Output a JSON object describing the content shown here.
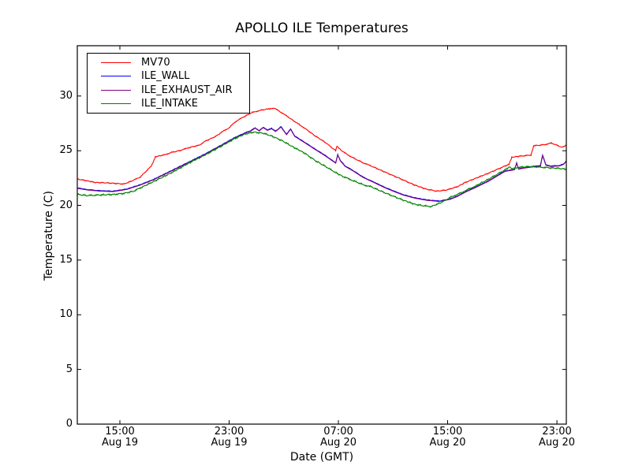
{
  "chart_data": {
    "type": "line",
    "title": "APOLLO ILE Temperatures",
    "xlabel": "Date (GMT)",
    "ylabel": "Temperature (C)",
    "background": "#ffffff",
    "frame_color": "#000000",
    "grid": false,
    "legend_position": "upper left",
    "x_unit": "hours since Aug 19 00:00 GMT",
    "xlim": [
      11.88,
      47.69
    ],
    "ylim": [
      0,
      34.6
    ],
    "y_ticks": [
      "0",
      "5",
      "10",
      "15",
      "20",
      "25",
      "30"
    ],
    "y_tick_values": [
      0,
      5,
      10,
      15,
      20,
      25,
      30
    ],
    "x_ticks": [
      {
        "value": 15,
        "time": "15:00",
        "date": "Aug 19"
      },
      {
        "value": 23,
        "time": "23:00",
        "date": "Aug 19"
      },
      {
        "value": 31,
        "time": "07:00",
        "date": "Aug 20"
      },
      {
        "value": 39,
        "time": "15:00",
        "date": "Aug 20"
      },
      {
        "value": 47,
        "time": "23:00",
        "date": "Aug 20"
      }
    ],
    "series": [
      {
        "name": "MV70",
        "color": "#ff0000",
        "noise_amp": 0.055,
        "points": [
          [
            11.9,
            22.4
          ],
          [
            12.6,
            22.25
          ],
          [
            13.2,
            22.1
          ],
          [
            14.2,
            22.05
          ],
          [
            15.3,
            21.95
          ],
          [
            16,
            22.3
          ],
          [
            16.5,
            22.6
          ],
          [
            17.3,
            23.6
          ],
          [
            17.45,
            24
          ],
          [
            17.6,
            24.45
          ],
          [
            18.2,
            24.6
          ],
          [
            18.8,
            24.85
          ],
          [
            19.5,
            25.05
          ],
          [
            20.1,
            25.3
          ],
          [
            20.8,
            25.5
          ],
          [
            21.3,
            25.9
          ],
          [
            22,
            26.3
          ],
          [
            22.4,
            26.65
          ],
          [
            23,
            27.1
          ],
          [
            23.4,
            27.6
          ],
          [
            24,
            28.05
          ],
          [
            24.7,
            28.5
          ],
          [
            25.3,
            28.7
          ],
          [
            26,
            28.85
          ],
          [
            26.3,
            28.9
          ],
          [
            26.7,
            28.6
          ],
          [
            27.3,
            28.1
          ],
          [
            28,
            27.5
          ],
          [
            28.6,
            27
          ],
          [
            29.3,
            26.35
          ],
          [
            30,
            25.8
          ],
          [
            30.8,
            25
          ],
          [
            30.9,
            25.4
          ],
          [
            31.1,
            25.15
          ],
          [
            31.4,
            24.85
          ],
          [
            32,
            24.4
          ],
          [
            32.8,
            23.9
          ],
          [
            33.4,
            23.6
          ],
          [
            34.5,
            23
          ],
          [
            35.7,
            22.35
          ],
          [
            36.5,
            21.9
          ],
          [
            37.4,
            21.5
          ],
          [
            38.2,
            21.3
          ],
          [
            38.9,
            21.4
          ],
          [
            39.7,
            21.7
          ],
          [
            40.3,
            22.1
          ],
          [
            41,
            22.45
          ],
          [
            42,
            22.95
          ],
          [
            43.2,
            23.6
          ],
          [
            43.5,
            23.75
          ],
          [
            43.7,
            24.4
          ],
          [
            44.3,
            24.5
          ],
          [
            45.1,
            24.6
          ],
          [
            45.3,
            25.45
          ],
          [
            46.1,
            25.55
          ],
          [
            46.6,
            25.7
          ],
          [
            47,
            25.5
          ],
          [
            47.4,
            25.3
          ],
          [
            47.7,
            25.5
          ]
        ]
      },
      {
        "name": "ILE_WALL",
        "color": "#0000ff",
        "noise_amp": 0.03,
        "points": [
          [
            11.9,
            21.6
          ],
          [
            12.6,
            21.45
          ],
          [
            13.5,
            21.35
          ],
          [
            14.5,
            21.3
          ],
          [
            15.5,
            21.5
          ],
          [
            16.5,
            21.9
          ],
          [
            17.5,
            22.4
          ],
          [
            18.8,
            23.2
          ],
          [
            20.1,
            24
          ],
          [
            21.3,
            24.75
          ],
          [
            22.4,
            25.5
          ],
          [
            23.4,
            26.2
          ],
          [
            24.1,
            26.6
          ],
          [
            24.6,
            26.85
          ],
          [
            24.9,
            27.1
          ],
          [
            25.2,
            26.85
          ],
          [
            25.5,
            27.15
          ],
          [
            25.8,
            26.9
          ],
          [
            26.1,
            27.05
          ],
          [
            26.4,
            26.8
          ],
          [
            26.8,
            27.2
          ],
          [
            27.2,
            26.5
          ],
          [
            27.5,
            27
          ],
          [
            27.8,
            26.35
          ],
          [
            28.5,
            25.8
          ],
          [
            29.3,
            25.15
          ],
          [
            30,
            24.6
          ],
          [
            30.8,
            23.9
          ],
          [
            30.95,
            24.65
          ],
          [
            31.15,
            24.1
          ],
          [
            31.5,
            23.6
          ],
          [
            32,
            23.25
          ],
          [
            32.8,
            22.6
          ],
          [
            33.4,
            22.25
          ],
          [
            34.5,
            21.6
          ],
          [
            35.7,
            21
          ],
          [
            36.6,
            20.7
          ],
          [
            37.5,
            20.5
          ],
          [
            38.4,
            20.4
          ],
          [
            39.2,
            20.6
          ],
          [
            39.7,
            20.85
          ],
          [
            40.3,
            21.25
          ],
          [
            41,
            21.65
          ],
          [
            42,
            22.25
          ],
          [
            43.2,
            23.15
          ],
          [
            43.9,
            23.3
          ],
          [
            44.05,
            23.9
          ],
          [
            44.2,
            23.35
          ],
          [
            44.6,
            23.45
          ],
          [
            45.2,
            23.55
          ],
          [
            45.8,
            23.65
          ],
          [
            45.95,
            24.6
          ],
          [
            46.2,
            23.7
          ],
          [
            46.6,
            23.6
          ],
          [
            47.2,
            23.65
          ],
          [
            47.5,
            23.8
          ],
          [
            47.7,
            24.1
          ]
        ]
      },
      {
        "name": "ILE_EXHAUST_AIR",
        "color": "#800080",
        "noise_amp": 0.0,
        "points_same_as": "ILE_WALL",
        "offset": -0.04,
        "note": "visually overlapped by ILE_WALL line in the screenshot",
        "draw_under": "ILE_WALL"
      },
      {
        "name": "ILE_INTAKE",
        "color": "#008000",
        "noise_amp": 0.08,
        "points": [
          [
            11.9,
            21
          ],
          [
            12.6,
            20.9
          ],
          [
            13.5,
            20.95
          ],
          [
            14.5,
            21
          ],
          [
            15.3,
            21.1
          ],
          [
            16,
            21.3
          ],
          [
            16.5,
            21.6
          ],
          [
            17.5,
            22.2
          ],
          [
            18.8,
            23
          ],
          [
            20.1,
            23.9
          ],
          [
            21.3,
            24.65
          ],
          [
            22.4,
            25.4
          ],
          [
            23.4,
            26.1
          ],
          [
            24.1,
            26.5
          ],
          [
            24.8,
            26.7
          ],
          [
            25.5,
            26.6
          ],
          [
            26.2,
            26.3
          ],
          [
            26.9,
            25.9
          ],
          [
            27.6,
            25.4
          ],
          [
            28.5,
            24.8
          ],
          [
            29.3,
            24.1
          ],
          [
            30,
            23.6
          ],
          [
            30.8,
            23
          ],
          [
            31.4,
            22.6
          ],
          [
            32,
            22.3
          ],
          [
            32.8,
            21.9
          ],
          [
            33.4,
            21.7
          ],
          [
            34.5,
            21.1
          ],
          [
            35.7,
            20.5
          ],
          [
            36.6,
            20.1
          ],
          [
            37.3,
            19.95
          ],
          [
            37.8,
            19.9
          ],
          [
            38.5,
            20.25
          ],
          [
            39.3,
            20.8
          ],
          [
            39.9,
            21.1
          ],
          [
            40.4,
            21.4
          ],
          [
            41,
            21.75
          ],
          [
            42,
            22.4
          ],
          [
            43.2,
            23.25
          ],
          [
            43.5,
            23.5
          ],
          [
            43.8,
            23.35
          ],
          [
            44.3,
            23.5
          ],
          [
            45,
            23.55
          ],
          [
            45.8,
            23.5
          ],
          [
            46.3,
            23.45
          ],
          [
            47,
            23.4
          ],
          [
            47.7,
            23.3
          ]
        ]
      }
    ]
  }
}
